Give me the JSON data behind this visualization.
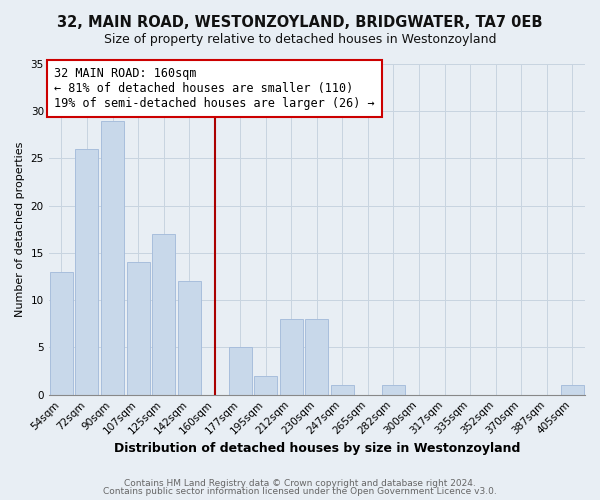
{
  "title": "32, MAIN ROAD, WESTONZOYLAND, BRIDGWATER, TA7 0EB",
  "subtitle": "Size of property relative to detached houses in Westonzoyland",
  "xlabel": "Distribution of detached houses by size in Westonzoyland",
  "ylabel": "Number of detached properties",
  "bar_labels": [
    "54sqm",
    "72sqm",
    "90sqm",
    "107sqm",
    "125sqm",
    "142sqm",
    "160sqm",
    "177sqm",
    "195sqm",
    "212sqm",
    "230sqm",
    "247sqm",
    "265sqm",
    "282sqm",
    "300sqm",
    "317sqm",
    "335sqm",
    "352sqm",
    "370sqm",
    "387sqm",
    "405sqm"
  ],
  "bar_values": [
    13,
    26,
    29,
    14,
    17,
    12,
    0,
    5,
    2,
    8,
    8,
    1,
    0,
    1,
    0,
    0,
    0,
    0,
    0,
    0,
    1
  ],
  "bar_color": "#c8d8ea",
  "bar_edge_color": "#a8bedc",
  "vline_x_idx": 6,
  "vline_color": "#aa0000",
  "annotation_title": "32 MAIN ROAD: 160sqm",
  "annotation_line1": "← 81% of detached houses are smaller (110)",
  "annotation_line2": "19% of semi-detached houses are larger (26) →",
  "annotation_box_color": "#ffffff",
  "annotation_box_edge": "#cc0000",
  "ylim": [
    0,
    35
  ],
  "yticks": [
    0,
    5,
    10,
    15,
    20,
    25,
    30,
    35
  ],
  "footer1": "Contains HM Land Registry data © Crown copyright and database right 2024.",
  "footer2": "Contains public sector information licensed under the Open Government Licence v3.0.",
  "bg_color": "#e8eef4",
  "plot_bg_color": "#e8eef4",
  "title_fontsize": 10.5,
  "subtitle_fontsize": 9,
  "ann_fontsize": 8.5,
  "xlabel_fontsize": 9,
  "ylabel_fontsize": 8,
  "tick_fontsize": 7.5,
  "footer_fontsize": 6.5
}
